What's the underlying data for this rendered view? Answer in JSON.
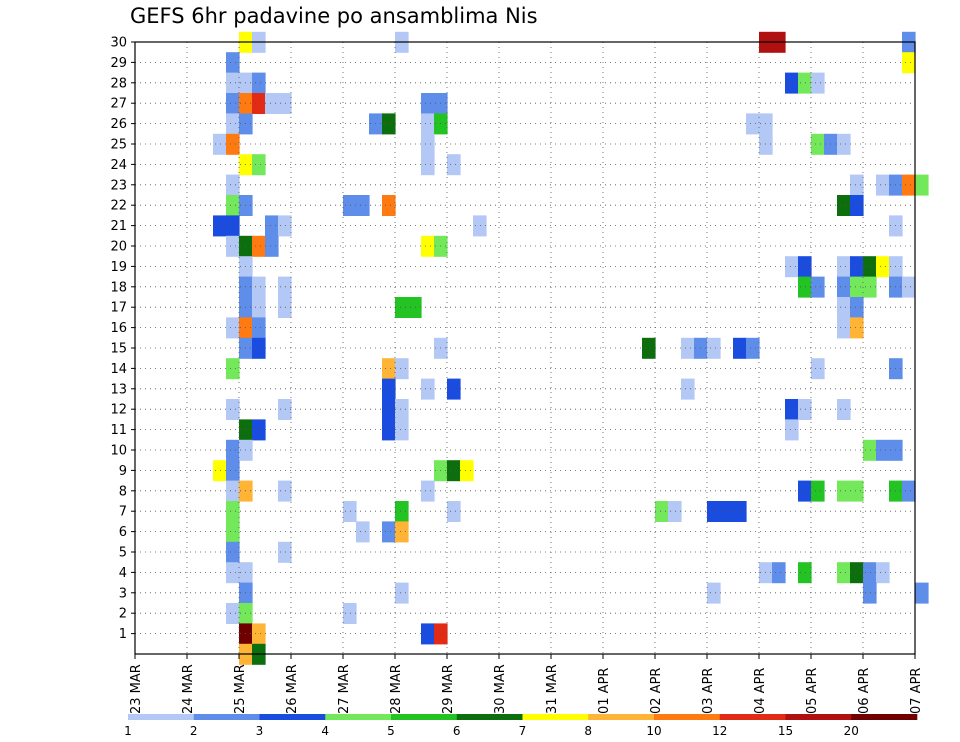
{
  "chart_data": {
    "type": "heatmap",
    "title": "GEFS 6hr padavine po ansamblima Nis",
    "xlabel": "",
    "ylabel": "",
    "x_ticks": [
      "23 MAR",
      "24 MAR",
      "25 MAR",
      "26 MAR",
      "27 MAR",
      "28 MAR",
      "29 MAR",
      "30 MAR",
      "31 MAR",
      "01 APR",
      "02 APR",
      "03 APR",
      "04 APR",
      "05 APR",
      "06 APR",
      "07 APR"
    ],
    "x_range": [
      "23 MAR 00Z",
      "07 APR 00Z"
    ],
    "time_step": "6hr",
    "y_ticks": [
      1,
      2,
      3,
      4,
      5,
      6,
      7,
      8,
      9,
      10,
      11,
      12,
      13,
      14,
      15,
      16,
      17,
      18,
      19,
      20,
      21,
      22,
      23,
      24,
      25,
      26,
      27,
      28,
      29,
      30
    ],
    "y_range": [
      0,
      30
    ],
    "grid": true,
    "colorbar": {
      "labels": [
        "1",
        "2",
        "3",
        "4",
        "5",
        "6",
        "7",
        "8",
        "10",
        "12",
        "15",
        "20"
      ],
      "colors": [
        "#b3c8f5",
        "#5f8eea",
        "#1a4ce0",
        "#72e85a",
        "#22c322",
        "#0c6e0c",
        "#ffff00",
        "#ffb436",
        "#ff7a10",
        "#e32a14",
        "#b01010",
        "#6e0000"
      ]
    },
    "cells": [
      {
        "m": 30,
        "t": "25 MAR 00Z",
        "bin": 6
      },
      {
        "m": 30,
        "t": "25 MAR 06Z",
        "bin": 0
      },
      {
        "m": 30,
        "t": "28 MAR 00Z",
        "bin": 0
      },
      {
        "m": 30,
        "t": "04 APR 00Z",
        "bin": 10
      },
      {
        "m": 30,
        "t": "04 APR 06Z",
        "bin": 10
      },
      {
        "m": 30,
        "t": "06 APR 18Z",
        "bin": 1
      },
      {
        "m": 29,
        "t": "24 MAR 18Z",
        "bin": 1
      },
      {
        "m": 29,
        "t": "06 APR 18Z",
        "bin": 6
      },
      {
        "m": 28,
        "t": "24 MAR 18Z",
        "bin": 0
      },
      {
        "m": 28,
        "t": "25 MAR 00Z",
        "bin": 0
      },
      {
        "m": 28,
        "t": "25 MAR 06Z",
        "bin": 1
      },
      {
        "m": 28,
        "t": "04 APR 12Z",
        "bin": 2
      },
      {
        "m": 28,
        "t": "04 APR 18Z",
        "bin": 3
      },
      {
        "m": 28,
        "t": "05 APR 00Z",
        "bin": 0
      },
      {
        "m": 27,
        "t": "24 MAR 18Z",
        "bin": 1
      },
      {
        "m": 27,
        "t": "25 MAR 00Z",
        "bin": 8
      },
      {
        "m": 27,
        "t": "25 MAR 06Z",
        "bin": 9
      },
      {
        "m": 27,
        "t": "25 MAR 12Z",
        "bin": 0
      },
      {
        "m": 27,
        "t": "25 MAR 18Z",
        "bin": 0
      },
      {
        "m": 27,
        "t": "28 MAR 12Z",
        "bin": 1
      },
      {
        "m": 27,
        "t": "28 MAR 18Z",
        "bin": 1
      },
      {
        "m": 26,
        "t": "24 MAR 18Z",
        "bin": 0
      },
      {
        "m": 26,
        "t": "25 MAR 00Z",
        "bin": 1
      },
      {
        "m": 26,
        "t": "27 MAR 12Z",
        "bin": 1
      },
      {
        "m": 26,
        "t": "27 MAR 18Z",
        "bin": 5
      },
      {
        "m": 26,
        "t": "28 MAR 12Z",
        "bin": 0
      },
      {
        "m": 26,
        "t": "28 MAR 18Z",
        "bin": 4
      },
      {
        "m": 26,
        "t": "03 APR 18Z",
        "bin": 0
      },
      {
        "m": 26,
        "t": "04 APR 00Z",
        "bin": 0
      },
      {
        "m": 25,
        "t": "24 MAR 12Z",
        "bin": 0
      },
      {
        "m": 25,
        "t": "24 MAR 18Z",
        "bin": 8
      },
      {
        "m": 25,
        "t": "28 MAR 12Z",
        "bin": 0
      },
      {
        "m": 25,
        "t": "04 APR 00Z",
        "bin": 0
      },
      {
        "m": 25,
        "t": "05 APR 00Z",
        "bin": 3
      },
      {
        "m": 25,
        "t": "05 APR 06Z",
        "bin": 1
      },
      {
        "m": 25,
        "t": "05 APR 12Z",
        "bin": 0
      },
      {
        "m": 24,
        "t": "25 MAR 00Z",
        "bin": 6
      },
      {
        "m": 24,
        "t": "25 MAR 06Z",
        "bin": 3
      },
      {
        "m": 24,
        "t": "28 MAR 12Z",
        "bin": 0
      },
      {
        "m": 24,
        "t": "29 MAR 00Z",
        "bin": 0
      },
      {
        "m": 23,
        "t": "24 MAR 18Z",
        "bin": 0
      },
      {
        "m": 23,
        "t": "05 APR 18Z",
        "bin": 0
      },
      {
        "m": 23,
        "t": "06 APR 06Z",
        "bin": 0
      },
      {
        "m": 23,
        "t": "06 APR 12Z",
        "bin": 1
      },
      {
        "m": 23,
        "t": "06 APR 18Z",
        "bin": 8
      },
      {
        "m": 23,
        "t": "07 APR 00Z",
        "bin": 3
      },
      {
        "m": 22,
        "t": "24 MAR 18Z",
        "bin": 3
      },
      {
        "m": 22,
        "t": "25 MAR 00Z",
        "bin": 1
      },
      {
        "m": 22,
        "t": "27 MAR 00Z",
        "bin": 1
      },
      {
        "m": 22,
        "t": "27 MAR 06Z",
        "bin": 1
      },
      {
        "m": 22,
        "t": "27 MAR 18Z",
        "bin": 8
      },
      {
        "m": 22,
        "t": "05 APR 12Z",
        "bin": 5
      },
      {
        "m": 22,
        "t": "05 APR 18Z",
        "bin": 2
      },
      {
        "m": 21,
        "t": "24 MAR 12Z",
        "bin": 2
      },
      {
        "m": 21,
        "t": "24 MAR 18Z",
        "bin": 2
      },
      {
        "m": 21,
        "t": "25 MAR 12Z",
        "bin": 1
      },
      {
        "m": 21,
        "t": "25 MAR 18Z",
        "bin": 0
      },
      {
        "m": 21,
        "t": "29 MAR 12Z",
        "bin": 0
      },
      {
        "m": 21,
        "t": "06 APR 12Z",
        "bin": 0
      },
      {
        "m": 20,
        "t": "24 MAR 18Z",
        "bin": 0
      },
      {
        "m": 20,
        "t": "25 MAR 00Z",
        "bin": 5
      },
      {
        "m": 20,
        "t": "25 MAR 06Z",
        "bin": 8
      },
      {
        "m": 20,
        "t": "25 MAR 12Z",
        "bin": 1
      },
      {
        "m": 20,
        "t": "28 MAR 12Z",
        "bin": 6
      },
      {
        "m": 20,
        "t": "28 MAR 18Z",
        "bin": 3
      },
      {
        "m": 19,
        "t": "25 MAR 00Z",
        "bin": 0
      },
      {
        "m": 19,
        "t": "04 APR 12Z",
        "bin": 0
      },
      {
        "m": 19,
        "t": "04 APR 18Z",
        "bin": 2
      },
      {
        "m": 19,
        "t": "05 APR 12Z",
        "bin": 0
      },
      {
        "m": 19,
        "t": "05 APR 18Z",
        "bin": 2
      },
      {
        "m": 19,
        "t": "06 APR 00Z",
        "bin": 5
      },
      {
        "m": 19,
        "t": "06 APR 06Z",
        "bin": 6
      },
      {
        "m": 19,
        "t": "06 APR 12Z",
        "bin": 0
      },
      {
        "m": 18,
        "t": "25 MAR 00Z",
        "bin": 1
      },
      {
        "m": 18,
        "t": "25 MAR 06Z",
        "bin": 0
      },
      {
        "m": 18,
        "t": "25 MAR 18Z",
        "bin": 0
      },
      {
        "m": 18,
        "t": "04 APR 18Z",
        "bin": 4
      },
      {
        "m": 18,
        "t": "05 APR 00Z",
        "bin": 1
      },
      {
        "m": 18,
        "t": "05 APR 12Z",
        "bin": 1
      },
      {
        "m": 18,
        "t": "05 APR 18Z",
        "bin": 3
      },
      {
        "m": 18,
        "t": "06 APR 00Z",
        "bin": 3
      },
      {
        "m": 18,
        "t": "06 APR 12Z",
        "bin": 1
      },
      {
        "m": 18,
        "t": "06 APR 18Z",
        "bin": 0
      },
      {
        "m": 17,
        "t": "25 MAR 00Z",
        "bin": 1
      },
      {
        "m": 17,
        "t": "25 MAR 06Z",
        "bin": 0
      },
      {
        "m": 17,
        "t": "25 MAR 18Z",
        "bin": 0
      },
      {
        "m": 17,
        "t": "28 MAR 00Z",
        "bin": 4
      },
      {
        "m": 17,
        "t": "28 MAR 06Z",
        "bin": 4
      },
      {
        "m": 17,
        "t": "05 APR 12Z",
        "bin": 0
      },
      {
        "m": 17,
        "t": "05 APR 18Z",
        "bin": 1
      },
      {
        "m": 16,
        "t": "24 MAR 18Z",
        "bin": 0
      },
      {
        "m": 16,
        "t": "25 MAR 00Z",
        "bin": 8
      },
      {
        "m": 16,
        "t": "25 MAR 06Z",
        "bin": 1
      },
      {
        "m": 16,
        "t": "05 APR 12Z",
        "bin": 0
      },
      {
        "m": 16,
        "t": "05 APR 18Z",
        "bin": 7
      },
      {
        "m": 15,
        "t": "25 MAR 00Z",
        "bin": 1
      },
      {
        "m": 15,
        "t": "25 MAR 06Z",
        "bin": 2
      },
      {
        "m": 15,
        "t": "28 MAR 18Z",
        "bin": 0
      },
      {
        "m": 15,
        "t": "01 APR 18Z",
        "bin": 5
      },
      {
        "m": 15,
        "t": "02 APR 12Z",
        "bin": 0
      },
      {
        "m": 15,
        "t": "02 APR 18Z",
        "bin": 1
      },
      {
        "m": 15,
        "t": "03 APR 00Z",
        "bin": 0
      },
      {
        "m": 15,
        "t": "03 APR 12Z",
        "bin": 2
      },
      {
        "m": 15,
        "t": "03 APR 18Z",
        "bin": 1
      },
      {
        "m": 14,
        "t": "24 MAR 18Z",
        "bin": 3
      },
      {
        "m": 14,
        "t": "27 MAR 18Z",
        "bin": 7
      },
      {
        "m": 14,
        "t": "28 MAR 00Z",
        "bin": 0
      },
      {
        "m": 14,
        "t": "05 APR 00Z",
        "bin": 0
      },
      {
        "m": 14,
        "t": "06 APR 12Z",
        "bin": 1
      },
      {
        "m": 13,
        "t": "27 MAR 18Z",
        "bin": 2
      },
      {
        "m": 13,
        "t": "28 MAR 12Z",
        "bin": 0
      },
      {
        "m": 13,
        "t": "29 MAR 00Z",
        "bin": 2
      },
      {
        "m": 13,
        "t": "02 APR 12Z",
        "bin": 0
      },
      {
        "m": 12,
        "t": "24 MAR 18Z",
        "bin": 0
      },
      {
        "m": 12,
        "t": "25 MAR 18Z",
        "bin": 0
      },
      {
        "m": 12,
        "t": "27 MAR 18Z",
        "bin": 2
      },
      {
        "m": 12,
        "t": "28 MAR 00Z",
        "bin": 0
      },
      {
        "m": 12,
        "t": "04 APR 12Z",
        "bin": 2
      },
      {
        "m": 12,
        "t": "04 APR 18Z",
        "bin": 0
      },
      {
        "m": 12,
        "t": "05 APR 12Z",
        "bin": 0
      },
      {
        "m": 11,
        "t": "25 MAR 00Z",
        "bin": 5
      },
      {
        "m": 11,
        "t": "25 MAR 06Z",
        "bin": 2
      },
      {
        "m": 11,
        "t": "27 MAR 18Z",
        "bin": 2
      },
      {
        "m": 11,
        "t": "28 MAR 00Z",
        "bin": 0
      },
      {
        "m": 11,
        "t": "04 APR 12Z",
        "bin": 0
      },
      {
        "m": 10,
        "t": "24 MAR 18Z",
        "bin": 1
      },
      {
        "m": 10,
        "t": "25 MAR 00Z",
        "bin": 0
      },
      {
        "m": 10,
        "t": "06 APR 00Z",
        "bin": 3
      },
      {
        "m": 10,
        "t": "06 APR 06Z",
        "bin": 1
      },
      {
        "m": 10,
        "t": "06 APR 12Z",
        "bin": 1
      },
      {
        "m": 9,
        "t": "24 MAR 12Z",
        "bin": 6
      },
      {
        "m": 9,
        "t": "24 MAR 18Z",
        "bin": 1
      },
      {
        "m": 9,
        "t": "28 MAR 18Z",
        "bin": 3
      },
      {
        "m": 9,
        "t": "29 MAR 00Z",
        "bin": 5
      },
      {
        "m": 9,
        "t": "29 MAR 06Z",
        "bin": 6
      },
      {
        "m": 8,
        "t": "24 MAR 18Z",
        "bin": 0
      },
      {
        "m": 8,
        "t": "25 MAR 00Z",
        "bin": 7
      },
      {
        "m": 8,
        "t": "25 MAR 18Z",
        "bin": 0
      },
      {
        "m": 8,
        "t": "28 MAR 12Z",
        "bin": 0
      },
      {
        "m": 8,
        "t": "04 APR 18Z",
        "bin": 2
      },
      {
        "m": 8,
        "t": "05 APR 00Z",
        "bin": 4
      },
      {
        "m": 8,
        "t": "05 APR 12Z",
        "bin": 3
      },
      {
        "m": 8,
        "t": "05 APR 18Z",
        "bin": 3
      },
      {
        "m": 8,
        "t": "06 APR 12Z",
        "bin": 4
      },
      {
        "m": 8,
        "t": "06 APR 18Z",
        "bin": 1
      },
      {
        "m": 7,
        "t": "24 MAR 18Z",
        "bin": 3
      },
      {
        "m": 7,
        "t": "27 MAR 00Z",
        "bin": 0
      },
      {
        "m": 7,
        "t": "28 MAR 00Z",
        "bin": 4
      },
      {
        "m": 7,
        "t": "29 MAR 00Z",
        "bin": 0
      },
      {
        "m": 7,
        "t": "02 APR 00Z",
        "bin": 3
      },
      {
        "m": 7,
        "t": "02 APR 06Z",
        "bin": 0
      },
      {
        "m": 7,
        "t": "03 APR 00Z",
        "bin": 2
      },
      {
        "m": 7,
        "t": "03 APR 06Z",
        "bin": 2
      },
      {
        "m": 7,
        "t": "03 APR 12Z",
        "bin": 2
      },
      {
        "m": 6,
        "t": "24 MAR 18Z",
        "bin": 3
      },
      {
        "m": 6,
        "t": "27 MAR 06Z",
        "bin": 0
      },
      {
        "m": 6,
        "t": "27 MAR 18Z",
        "bin": 1
      },
      {
        "m": 6,
        "t": "28 MAR 00Z",
        "bin": 7
      },
      {
        "m": 5,
        "t": "24 MAR 18Z",
        "bin": 1
      },
      {
        "m": 5,
        "t": "25 MAR 18Z",
        "bin": 0
      },
      {
        "m": 4,
        "t": "24 MAR 18Z",
        "bin": 0
      },
      {
        "m": 4,
        "t": "25 MAR 00Z",
        "bin": 0
      },
      {
        "m": 4,
        "t": "04 APR 00Z",
        "bin": 0
      },
      {
        "m": 4,
        "t": "04 APR 06Z",
        "bin": 1
      },
      {
        "m": 4,
        "t": "04 APR 18Z",
        "bin": 4
      },
      {
        "m": 4,
        "t": "05 APR 12Z",
        "bin": 3
      },
      {
        "m": 4,
        "t": "05 APR 18Z",
        "bin": 5
      },
      {
        "m": 4,
        "t": "06 APR 00Z",
        "bin": 1
      },
      {
        "m": 4,
        "t": "06 APR 06Z",
        "bin": 0
      },
      {
        "m": 3,
        "t": "25 MAR 00Z",
        "bin": 1
      },
      {
        "m": 3,
        "t": "28 MAR 00Z",
        "bin": 0
      },
      {
        "m": 3,
        "t": "03 APR 00Z",
        "bin": 0
      },
      {
        "m": 3,
        "t": "06 APR 00Z",
        "bin": 1
      },
      {
        "m": 3,
        "t": "07 APR 00Z",
        "bin": 1
      },
      {
        "m": 2,
        "t": "24 MAR 18Z",
        "bin": 0
      },
      {
        "m": 2,
        "t": "25 MAR 00Z",
        "bin": 3
      },
      {
        "m": 2,
        "t": "27 MAR 00Z",
        "bin": 0
      },
      {
        "m": 1,
        "t": "25 MAR 00Z",
        "bin": 11
      },
      {
        "m": 1,
        "t": "25 MAR 06Z",
        "bin": 7
      },
      {
        "m": 1,
        "t": "28 MAR 12Z",
        "bin": 2
      },
      {
        "m": 1,
        "t": "28 MAR 18Z",
        "bin": 9
      },
      {
        "m": 0,
        "t": "25 MAR 00Z",
        "bin": 7
      },
      {
        "m": 0,
        "t": "25 MAR 06Z",
        "bin": 5
      }
    ]
  }
}
